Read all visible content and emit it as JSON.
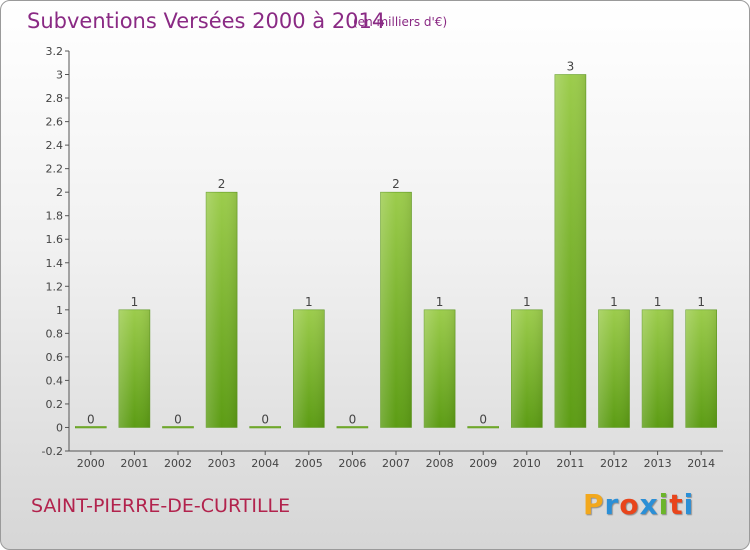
{
  "header": {
    "title": "Subventions Versées 2000 à 2014",
    "unit_note": "(en milliers d'€)"
  },
  "footer": {
    "commune": "SAINT-PIERRE-DE-CURTILLE",
    "logo_letters": [
      "P",
      "r",
      "o",
      "x",
      "i",
      "t",
      "i"
    ],
    "logo_colors": [
      "#f2a81d",
      "#2b8fd6",
      "#e8451c",
      "#2b8fd6",
      "#6bb52a",
      "#e8451c",
      "#2b8fd6"
    ]
  },
  "chart_data": {
    "type": "bar",
    "categories": [
      "2000",
      "2001",
      "2002",
      "2003",
      "2004",
      "2005",
      "2006",
      "2007",
      "2008",
      "2009",
      "2010",
      "2011",
      "2012",
      "2013",
      "2014"
    ],
    "values": [
      0,
      1,
      0,
      2,
      0,
      1,
      0,
      2,
      1,
      0,
      1,
      3,
      1,
      1,
      1
    ],
    "data_labels": [
      "0",
      "1",
      "0",
      "2",
      "0",
      "1",
      "0",
      "2",
      "1",
      "0",
      "1",
      "3",
      "1",
      "1",
      "1"
    ],
    "ylim": [
      -0.2,
      3.2
    ],
    "yticks": [
      -0.2,
      0,
      0.2,
      0.4,
      0.6,
      0.8,
      1,
      1.2,
      1.4,
      1.6,
      1.8,
      2,
      2.2,
      2.4,
      2.6,
      2.8,
      3,
      3.2
    ],
    "ytick_labels": [
      "-0.2",
      "0",
      "0.2",
      "0.4",
      "0.6",
      "0.8",
      "1",
      "1.2",
      "1.4",
      "1.6",
      "1.8",
      "2",
      "2.2",
      "2.4",
      "2.6",
      "2.8",
      "3",
      "3.2"
    ],
    "grid": false,
    "bar_color_top": "#9ccc4c",
    "bar_color_bottom": "#5c9c14"
  }
}
